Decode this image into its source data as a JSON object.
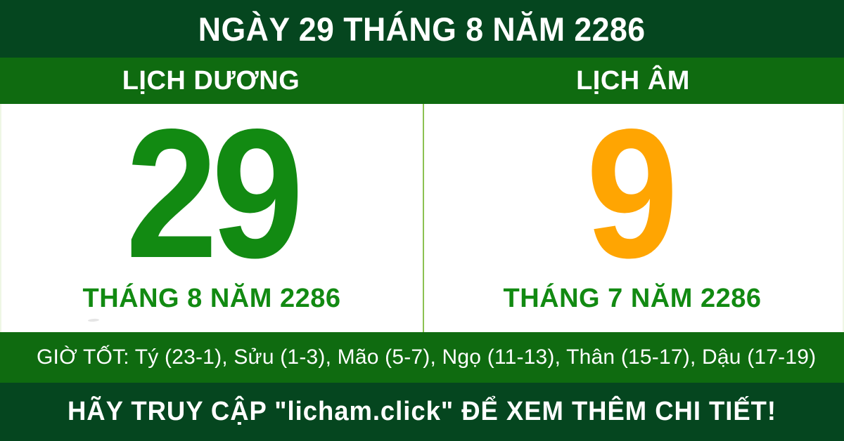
{
  "header": {
    "title": "NGÀY 29 THÁNG 8 NĂM 2286"
  },
  "solar": {
    "label": "LỊCH DƯƠNG",
    "day": "29",
    "month_year": "THÁNG 8 NĂM 2286"
  },
  "lunar": {
    "label": "LỊCH ÂM",
    "day": "9",
    "month_year": "THÁNG 7 NĂM 2286"
  },
  "good_hours": {
    "text": "GIỜ TỐT: Tý (23-1), Sửu (1-3), Mão (5-7), Ngọ (11-13), Thân (15-17), Dậu (17-19)"
  },
  "footer": {
    "text": "HÃY TRUY CẬP \"licham.click\" ĐỂ XEM THÊM CHI TIẾT!"
  },
  "colors": {
    "dark_green": "#05461f",
    "bar_green": "#0f6b10",
    "solar_day": "#128a12",
    "lunar_day": "#ffa502",
    "month_text": "#128a12",
    "divider": "#8cc152",
    "panel_bg": "#ffffff",
    "text_light": "#ffffff"
  }
}
